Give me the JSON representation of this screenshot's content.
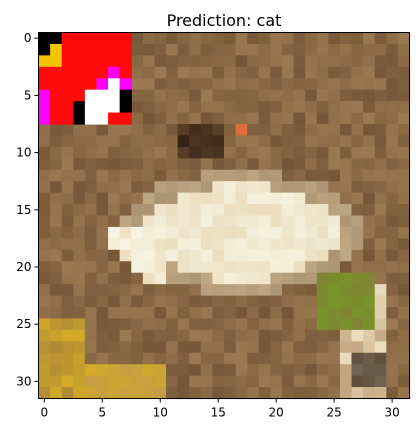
{
  "figure": {
    "title": "Prediction: cat"
  },
  "image": {
    "grid_size": 32,
    "palette_notes": "low-resolution 32x32 photo, brown ground background with a pale frog-like shape; red adversarial patch in the top-left corner",
    "background_color": "#8a6a45",
    "patch": {
      "rows": [
        0,
        7
      ],
      "cols": [
        0,
        7
      ],
      "main_color": "#ff0a0a",
      "accent_colors": [
        "#ffffff",
        "#ff00ff",
        "#000000",
        "#f5c400"
      ]
    }
  },
  "axes": {
    "x_ticks": [
      "0",
      "5",
      "10",
      "15",
      "20",
      "25",
      "30"
    ],
    "y_ticks": [
      "0",
      "5",
      "10",
      "15",
      "20",
      "25",
      "30"
    ],
    "x_tick_values": [
      0,
      5,
      10,
      15,
      20,
      25,
      30
    ],
    "y_tick_values": [
      0,
      5,
      10,
      15,
      20,
      25,
      30
    ]
  }
}
